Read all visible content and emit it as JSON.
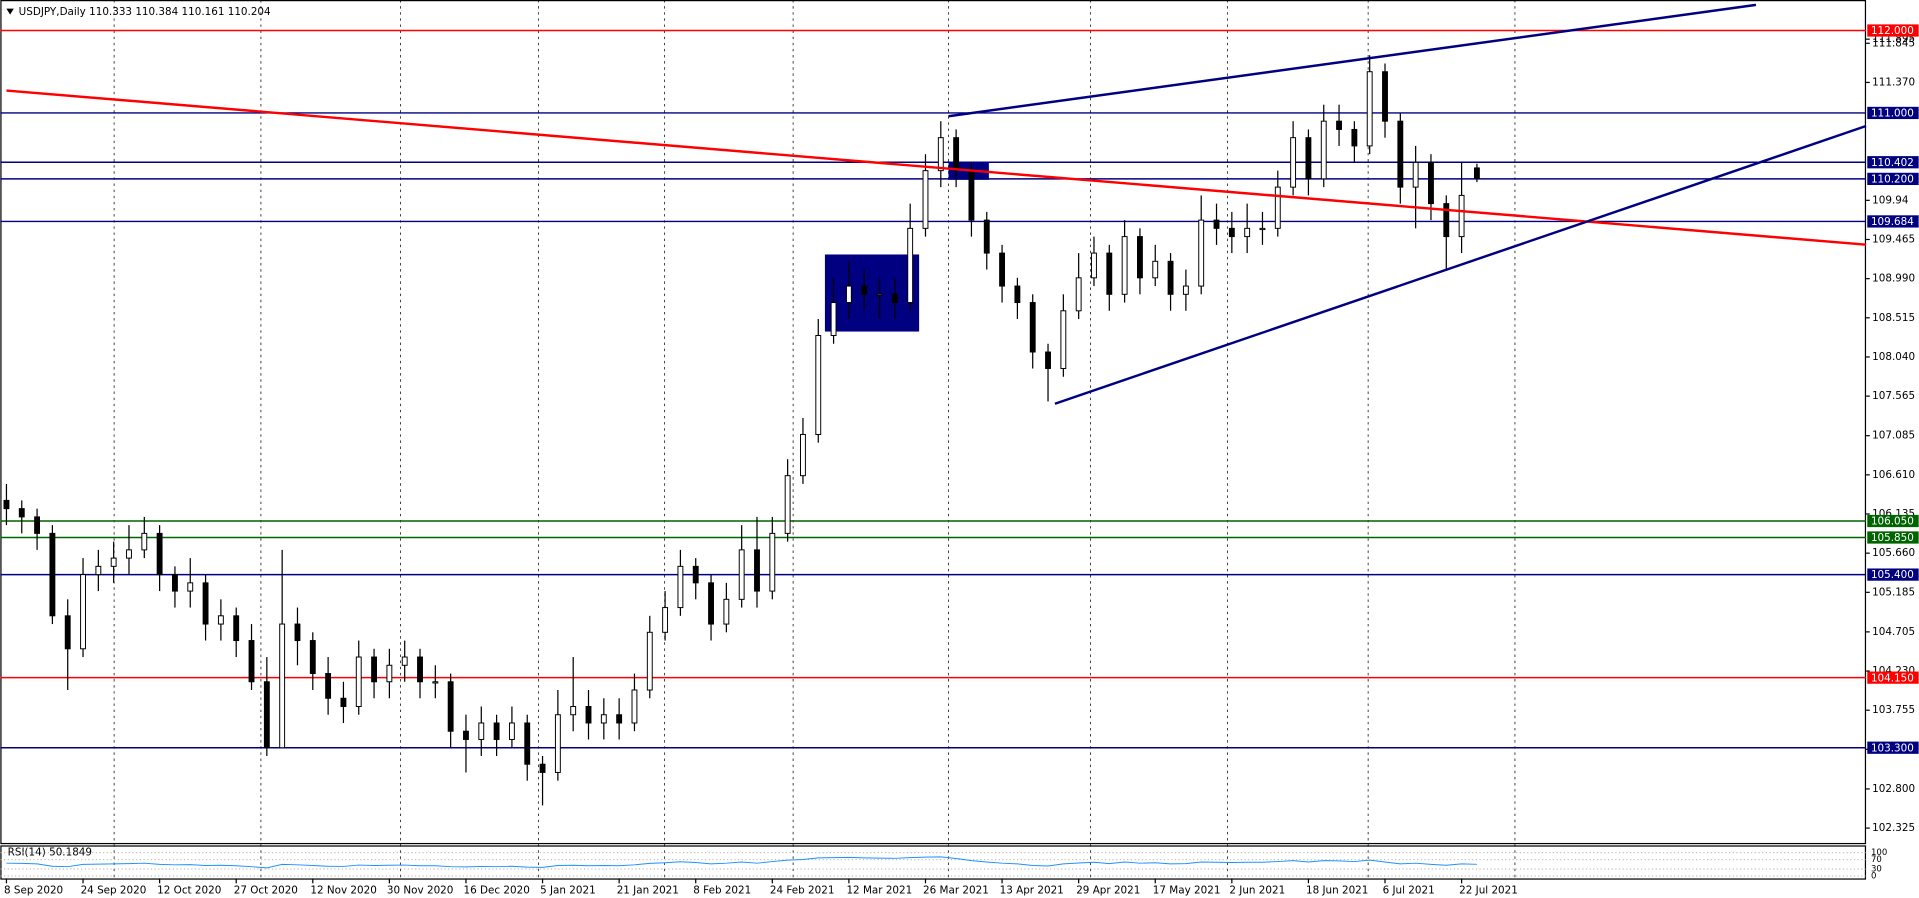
{
  "chart_data": {
    "type": "candlestick",
    "title": "USDJPY,Daily  110.333 110.384 110.161 110.204",
    "categories": [
      "8 Sep 2020",
      null,
      null,
      null,
      null,
      "24 Sep 2020",
      null,
      null,
      null,
      null,
      "12 Oct 2020",
      null,
      null,
      null,
      null,
      "27 Oct 2020",
      null,
      null,
      null,
      null,
      "12 Nov 2020",
      null,
      null,
      null,
      null,
      "30 Nov 2020",
      null,
      null,
      null,
      null,
      "16 Dec 2020",
      null,
      null,
      null,
      null,
      "5 Jan 2021",
      null,
      null,
      null,
      null,
      "21 Jan 2021",
      null,
      null,
      null,
      null,
      "8 Feb 2021",
      null,
      null,
      null,
      null,
      "24 Feb 2021",
      null,
      null,
      null,
      null,
      "12 Mar 2021",
      null,
      null,
      null,
      null,
      "26 Mar 2021",
      null,
      null,
      null,
      null,
      "13 Apr 2021",
      null,
      null,
      null,
      null,
      "29 Apr 2021",
      null,
      null,
      null,
      null,
      "17 May 2021",
      null,
      null,
      null,
      null,
      "2 Jun 2021",
      null,
      null,
      null,
      null,
      "18 Jun 2021",
      null,
      null,
      null,
      null,
      "6 Jul 2021",
      null,
      null,
      null,
      null,
      "22 Jul 2021",
      null
    ],
    "open": [
      106.3,
      106.2,
      106.1,
      105.9,
      104.9,
      104.5,
      105.4,
      105.5,
      105.6,
      105.7,
      105.9,
      105.4,
      105.2,
      105.3,
      104.8,
      104.9,
      104.6,
      104.1,
      103.3,
      104.8,
      104.6,
      104.2,
      103.9,
      103.8,
      104.4,
      104.1,
      104.3,
      104.4,
      104.1,
      104.1,
      103.5,
      103.4,
      103.6,
      103.4,
      103.6,
      103.1,
      103.0,
      103.7,
      103.8,
      103.6,
      103.7,
      103.6,
      104.0,
      104.7,
      105.0,
      105.5,
      105.3,
      104.8,
      105.1,
      105.7,
      105.2,
      105.9,
      106.6,
      107.1,
      108.3,
      108.7,
      108.9,
      108.8,
      108.8,
      108.7,
      109.6,
      110.3,
      110.7,
      110.3,
      109.7,
      109.3,
      108.9,
      108.7,
      108.1,
      107.9,
      108.6,
      109.0,
      109.3,
      108.8,
      109.5,
      109.0,
      109.2,
      108.8,
      108.9,
      109.7,
      109.6,
      109.5,
      109.6,
      109.6,
      110.1,
      110.7,
      110.2,
      110.9,
      110.8,
      110.6,
      111.5,
      110.9,
      110.1,
      110.4,
      109.9,
      109.5,
      110.333
    ],
    "high": [
      106.5,
      106.3,
      106.2,
      106.0,
      105.1,
      105.6,
      105.7,
      105.8,
      106.0,
      106.1,
      106.0,
      105.5,
      105.6,
      105.4,
      105.1,
      105.0,
      104.8,
      104.4,
      105.7,
      105.0,
      104.7,
      104.4,
      104.1,
      104.6,
      104.5,
      104.5,
      104.6,
      104.5,
      104.3,
      104.2,
      103.7,
      103.8,
      103.7,
      103.8,
      103.7,
      103.2,
      104.0,
      104.4,
      104.0,
      103.9,
      103.9,
      104.2,
      104.9,
      105.2,
      105.7,
      105.6,
      105.4,
      105.3,
      106.0,
      106.1,
      106.1,
      106.8,
      107.3,
      108.5,
      109.0,
      109.2,
      109.1,
      109.0,
      109.0,
      109.9,
      110.5,
      110.9,
      110.8,
      110.4,
      109.8,
      109.4,
      109.0,
      108.8,
      108.2,
      108.8,
      109.3,
      109.5,
      109.4,
      109.7,
      109.6,
      109.4,
      109.3,
      109.1,
      110.0,
      109.9,
      109.8,
      109.9,
      109.8,
      110.3,
      110.9,
      110.8,
      111.1,
      111.1,
      110.9,
      111.7,
      111.6,
      111.0,
      110.6,
      110.5,
      110.0,
      110.4,
      110.384
    ],
    "low": [
      106.0,
      105.9,
      105.7,
      104.8,
      104.0,
      104.4,
      105.2,
      105.3,
      105.4,
      105.6,
      105.2,
      105.0,
      105.0,
      104.6,
      104.6,
      104.4,
      104.0,
      103.2,
      103.3,
      104.3,
      104.0,
      103.7,
      103.6,
      103.7,
      103.9,
      103.9,
      104.1,
      103.9,
      103.9,
      103.3,
      103.0,
      103.2,
      103.2,
      103.3,
      102.9,
      102.6,
      102.9,
      103.5,
      103.4,
      103.4,
      103.4,
      103.5,
      103.9,
      104.6,
      104.9,
      105.1,
      104.6,
      104.7,
      105.0,
      105.0,
      105.1,
      105.8,
      106.5,
      107.0,
      108.2,
      108.5,
      108.6,
      108.5,
      108.5,
      108.6,
      109.5,
      110.1,
      110.1,
      109.5,
      109.1,
      108.7,
      108.5,
      107.9,
      107.5,
      107.8,
      108.5,
      108.9,
      108.6,
      108.7,
      108.8,
      108.9,
      108.6,
      108.6,
      108.8,
      109.4,
      109.3,
      109.3,
      109.4,
      109.5,
      110.0,
      110.0,
      110.1,
      110.6,
      110.4,
      110.5,
      110.7,
      109.9,
      109.6,
      109.7,
      109.1,
      109.3,
      110.161
    ],
    "close": [
      106.2,
      106.1,
      105.9,
      104.9,
      104.5,
      105.4,
      105.5,
      105.6,
      105.7,
      105.9,
      105.4,
      105.2,
      105.3,
      104.8,
      104.9,
      104.6,
      104.1,
      103.3,
      104.8,
      104.6,
      104.2,
      103.9,
      103.8,
      104.4,
      104.1,
      104.3,
      104.4,
      104.1,
      104.1,
      103.5,
      103.4,
      103.6,
      103.4,
      103.6,
      103.1,
      103.0,
      103.7,
      103.8,
      103.6,
      103.7,
      103.6,
      104.0,
      104.7,
      105.0,
      105.5,
      105.3,
      104.8,
      105.1,
      105.7,
      105.2,
      105.9,
      106.6,
      107.1,
      108.3,
      108.7,
      108.9,
      108.8,
      108.8,
      108.7,
      109.6,
      110.3,
      110.7,
      110.3,
      109.7,
      109.3,
      108.9,
      108.7,
      108.1,
      107.9,
      108.6,
      109.0,
      109.3,
      108.8,
      109.5,
      109.0,
      109.2,
      108.8,
      108.9,
      109.7,
      109.6,
      109.5,
      109.6,
      109.6,
      110.1,
      110.7,
      110.2,
      110.9,
      110.8,
      110.6,
      111.5,
      110.9,
      110.1,
      110.4,
      109.9,
      109.5,
      110.0,
      110.204
    ],
    "up_color": "#ffffff",
    "down_color": "#000000",
    "ylim": [
      102.13,
      112.37
    ],
    "yticks": [
      111.845,
      {
        "value": 111.37,
        "label": "111.370"
      },
      111.895,
      109.94,
      109.465,
      {
        "value": 108.99,
        "label": "108.990"
      },
      108.515,
      {
        "value": 108.04,
        "label": "108.040"
      },
      107.565,
      107.085,
      {
        "value": 106.61,
        "label": "106.610"
      },
      106.135,
      {
        "value": 105.66,
        "label": "105.660"
      },
      105.185,
      104.705,
      {
        "value": 104.23,
        "label": "104.230"
      },
      103.755,
      {
        "value": 103.28,
        "label": "103.280"
      },
      {
        "value": 102.8,
        "label": "102.800"
      },
      102.325
    ],
    "levels": [
      {
        "value": 112,
        "label": "112.000",
        "color": "#ff0000"
      },
      {
        "value": 111,
        "label": "111.000",
        "color": "#000080"
      },
      {
        "value": 110.402,
        "label": "110.402",
        "color": "#000080"
      },
      {
        "value": 110.2,
        "label": "110.200",
        "color": "#000080"
      },
      {
        "value": 109.684,
        "label": "109.684",
        "color": "#000080"
      },
      {
        "value": 106.05,
        "label": "106.050",
        "color": "#006400"
      },
      {
        "value": 105.85,
        "label": "105.850",
        "color": "#006400"
      },
      {
        "value": 105.4,
        "label": "105.400",
        "color": "#000080"
      },
      {
        "value": 104.15,
        "label": "104.150",
        "color": "#ff0000"
      },
      {
        "value": 103.3,
        "label": "103.300",
        "color": "#000080"
      }
    ],
    "rsi": {
      "name": "RSI(14) 50.1849",
      "color": "#1e90ff",
      "ylim": [
        0,
        100
      ],
      "yticks": [
        100,
        70,
        30,
        0
      ],
      "values": [
        55,
        54,
        52,
        42,
        40,
        50,
        51,
        52,
        53,
        55,
        50,
        48,
        49,
        45,
        46,
        44,
        40,
        35,
        50,
        48,
        45,
        42,
        41,
        47,
        45,
        46,
        47,
        44,
        44,
        40,
        39,
        41,
        40,
        42,
        38,
        37,
        45,
        46,
        44,
        45,
        44,
        48,
        54,
        57,
        61,
        58,
        52,
        55,
        60,
        55,
        62,
        68,
        71,
        78,
        79,
        80,
        78,
        77,
        76,
        79,
        81,
        82,
        75,
        66,
        60,
        55,
        52,
        45,
        43,
        52,
        56,
        59,
        53,
        60,
        55,
        57,
        52,
        53,
        60,
        59,
        58,
        59,
        59,
        62,
        66,
        60,
        66,
        65,
        62,
        68,
        60,
        52,
        55,
        50,
        46,
        52,
        50.1849
      ]
    }
  }
}
